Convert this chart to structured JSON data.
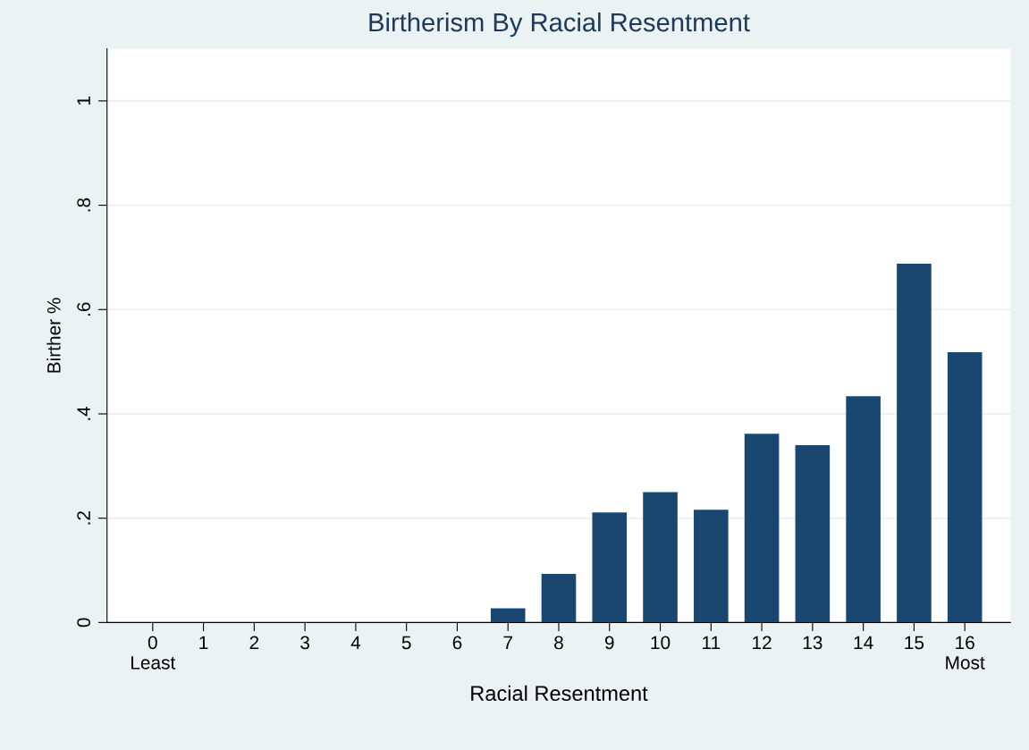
{
  "chart_data": {
    "type": "bar",
    "title": "Birtherism By Racial Resentment",
    "xlabel": "Racial Resentment",
    "ylabel": "Birther %",
    "x": [
      0,
      1,
      2,
      3,
      4,
      5,
      6,
      7,
      8,
      9,
      10,
      11,
      12,
      13,
      14,
      15,
      16
    ],
    "values": [
      0,
      0,
      0,
      0,
      0,
      0,
      0,
      0.027,
      0.093,
      0.211,
      0.25,
      0.216,
      0.362,
      0.34,
      0.434,
      0.688,
      0.518
    ],
    "color": "#1a476f",
    "xlim": [
      -0.9,
      16.9
    ],
    "xticks": [
      {
        "value": 0,
        "label": "0\nLeast"
      },
      1,
      2,
      3,
      4,
      5,
      6,
      7,
      8,
      9,
      10,
      11,
      12,
      13,
      14,
      15,
      {
        "value": 16,
        "label": "16\nMost"
      }
    ],
    "ylim": [
      0,
      1.1
    ],
    "yticks": [
      {
        "value": 0,
        "label": "0"
      },
      {
        "value": 0.2,
        "label": ".2"
      },
      {
        "value": 0.4,
        "label": ".4"
      },
      {
        "value": 0.6,
        "label": ".6"
      },
      {
        "value": 0.8,
        "label": ".8"
      },
      {
        "value": 1,
        "label": "1"
      }
    ],
    "grid": "y"
  }
}
